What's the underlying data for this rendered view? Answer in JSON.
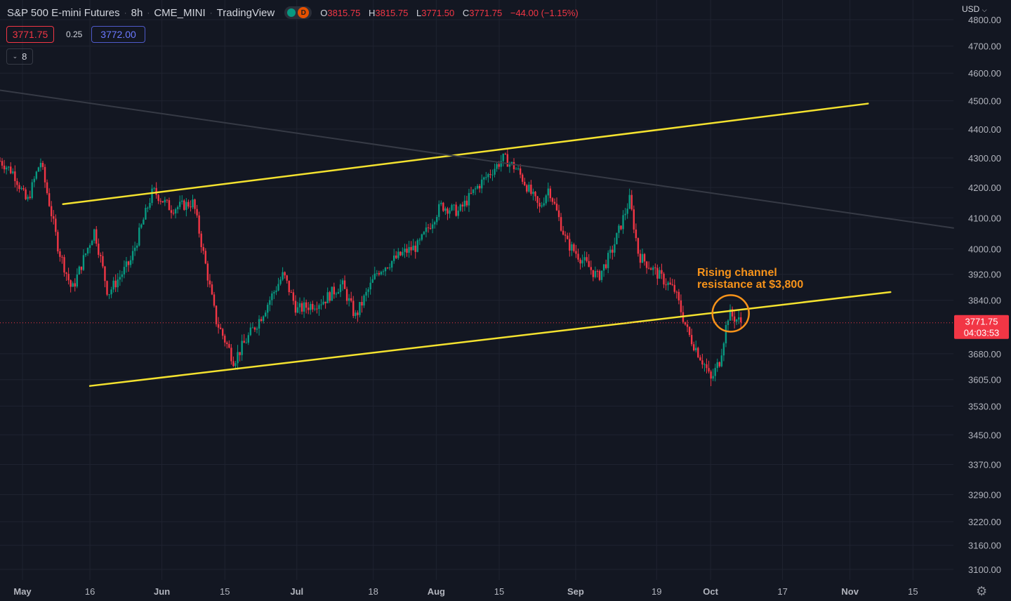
{
  "header": {
    "symbol": "S&P 500 E-mini Futures",
    "interval": "8h",
    "exchange": "CME_MINI",
    "source": "TradingView",
    "d_badge": "D",
    "open_label": "O",
    "open": "3815.75",
    "high_label": "H",
    "high": "3815.75",
    "low_label": "L",
    "low": "3771.50",
    "close_label": "C",
    "close": "3771.75",
    "change": "−44.00 (−1.15%)"
  },
  "trade": {
    "bid": "3771.75",
    "spread": "0.25",
    "ask": "3772.00"
  },
  "indicators": {
    "count": "8"
  },
  "currency": "USD",
  "colors": {
    "up": "#089981",
    "down": "#f23645",
    "channel": "#f4e22f",
    "annotation": "#f7931a",
    "trend": "#363a45",
    "bg": "#131722"
  },
  "chart_data": {
    "type": "candlestick",
    "ylim": [
      3070,
      4820
    ],
    "y_ticks": [
      {
        "label": "3100.00",
        "value": 3100
      },
      {
        "label": "3160.00",
        "value": 3160
      },
      {
        "label": "3220.00",
        "value": 3220
      },
      {
        "label": "3290.00",
        "value": 3290
      },
      {
        "label": "3370.00",
        "value": 3370
      },
      {
        "label": "3450.00",
        "value": 3450
      },
      {
        "label": "3530.00",
        "value": 3530
      },
      {
        "label": "3605.00",
        "value": 3605
      },
      {
        "label": "3680.00",
        "value": 3680
      },
      {
        "label": "3840.00",
        "value": 3840
      },
      {
        "label": "3920.00",
        "value": 3920
      },
      {
        "label": "4000.00",
        "value": 4000
      },
      {
        "label": "4100.00",
        "value": 4100
      },
      {
        "label": "4200.00",
        "value": 4200
      },
      {
        "label": "4300.00",
        "value": 4300
      },
      {
        "label": "4400.00",
        "value": 4400
      },
      {
        "label": "4500.00",
        "value": 4500
      },
      {
        "label": "4600.00",
        "value": 4600
      },
      {
        "label": "4700.00",
        "value": 4700
      },
      {
        "label": "4800.00",
        "value": 4800
      }
    ],
    "x_ticks": [
      {
        "label": "May",
        "date": "2022-05-01",
        "bold": true
      },
      {
        "label": "16",
        "date": "2022-05-16",
        "bold": false
      },
      {
        "label": "Jun",
        "date": "2022-06-01",
        "bold": true
      },
      {
        "label": "15",
        "date": "2022-06-15",
        "bold": false
      },
      {
        "label": "Jul",
        "date": "2022-07-01",
        "bold": true
      },
      {
        "label": "18",
        "date": "2022-07-18",
        "bold": false
      },
      {
        "label": "Aug",
        "date": "2022-08-01",
        "bold": true
      },
      {
        "label": "15",
        "date": "2022-08-15",
        "bold": false
      },
      {
        "label": "Sep",
        "date": "2022-09-01",
        "bold": true
      },
      {
        "label": "19",
        "date": "2022-09-19",
        "bold": false
      },
      {
        "label": "Oct",
        "date": "2022-10-01",
        "bold": true
      },
      {
        "label": "17",
        "date": "2022-10-17",
        "bold": false
      },
      {
        "label": "Nov",
        "date": "2022-11-01",
        "bold": true
      },
      {
        "label": "15",
        "date": "2022-11-15",
        "bold": false
      }
    ],
    "anchors": [
      {
        "date": "2022-04-26",
        "price": 4290
      },
      {
        "date": "2022-04-29",
        "price": 4250
      },
      {
        "date": "2022-05-02",
        "price": 4150
      },
      {
        "date": "2022-05-05",
        "price": 4290
      },
      {
        "date": "2022-05-09",
        "price": 4000
      },
      {
        "date": "2022-05-12",
        "price": 3870
      },
      {
        "date": "2022-05-17",
        "price": 4060
      },
      {
        "date": "2022-05-20",
        "price": 3860
      },
      {
        "date": "2022-05-25",
        "price": 3960
      },
      {
        "date": "2022-05-30",
        "price": 4190
      },
      {
        "date": "2022-06-03",
        "price": 4130
      },
      {
        "date": "2022-06-08",
        "price": 4150
      },
      {
        "date": "2022-06-13",
        "price": 3780
      },
      {
        "date": "2022-06-17",
        "price": 3660
      },
      {
        "date": "2022-06-23",
        "price": 3790
      },
      {
        "date": "2022-06-28",
        "price": 3920
      },
      {
        "date": "2022-07-01",
        "price": 3810
      },
      {
        "date": "2022-07-07",
        "price": 3840
      },
      {
        "date": "2022-07-11",
        "price": 3890
      },
      {
        "date": "2022-07-14",
        "price": 3790
      },
      {
        "date": "2022-07-19",
        "price": 3930
      },
      {
        "date": "2022-07-25",
        "price": 3990
      },
      {
        "date": "2022-07-28",
        "price": 4010
      },
      {
        "date": "2022-08-02",
        "price": 4140
      },
      {
        "date": "2022-08-06",
        "price": 4120
      },
      {
        "date": "2022-08-10",
        "price": 4200
      },
      {
        "date": "2022-08-16",
        "price": 4300
      },
      {
        "date": "2022-08-19",
        "price": 4260
      },
      {
        "date": "2022-08-24",
        "price": 4130
      },
      {
        "date": "2022-08-26",
        "price": 4200
      },
      {
        "date": "2022-08-30",
        "price": 4020
      },
      {
        "date": "2022-09-06",
        "price": 3910
      },
      {
        "date": "2022-09-09",
        "price": 3990
      },
      {
        "date": "2022-09-13",
        "price": 4160
      },
      {
        "date": "2022-09-15",
        "price": 3980
      },
      {
        "date": "2022-09-20",
        "price": 3910
      },
      {
        "date": "2022-09-23",
        "price": 3870
      },
      {
        "date": "2022-09-26",
        "price": 3740
      },
      {
        "date": "2022-09-30",
        "price": 3640
      },
      {
        "date": "2022-10-01",
        "price": 3600
      },
      {
        "date": "2022-10-03",
        "price": 3660
      },
      {
        "date": "2022-10-05",
        "price": 3800
      },
      {
        "date": "2022-10-07",
        "price": 3780
      },
      {
        "date": "2022-10-08",
        "price": 3771.75
      }
    ],
    "lines": [
      {
        "name": "channel-upper",
        "from": {
          "date": "2022-05-10",
          "price": 4145
        },
        "to": {
          "date": "2022-11-05",
          "price": 4490
        },
        "width": 2.5,
        "color": "#f4e22f"
      },
      {
        "name": "channel-lower",
        "from": {
          "date": "2022-05-16",
          "price": 3587
        },
        "to": {
          "date": "2022-11-10",
          "price": 3865
        },
        "width": 2.5,
        "color": "#f4e22f"
      },
      {
        "name": "downtrend",
        "from": {
          "date": "2022-04-26",
          "price": 4538
        },
        "to": {
          "date": "2022-11-24",
          "price": 4067
        },
        "width": 2,
        "color": "#363a45"
      }
    ],
    "current_price": {
      "label": "3771.75",
      "countdown": "04:03:53",
      "value": 3771.75
    },
    "annotation": {
      "text_line1": "Rising channel",
      "text_line2": "resistance at $3,800",
      "date": "2022-10-05",
      "price": 3800
    }
  }
}
